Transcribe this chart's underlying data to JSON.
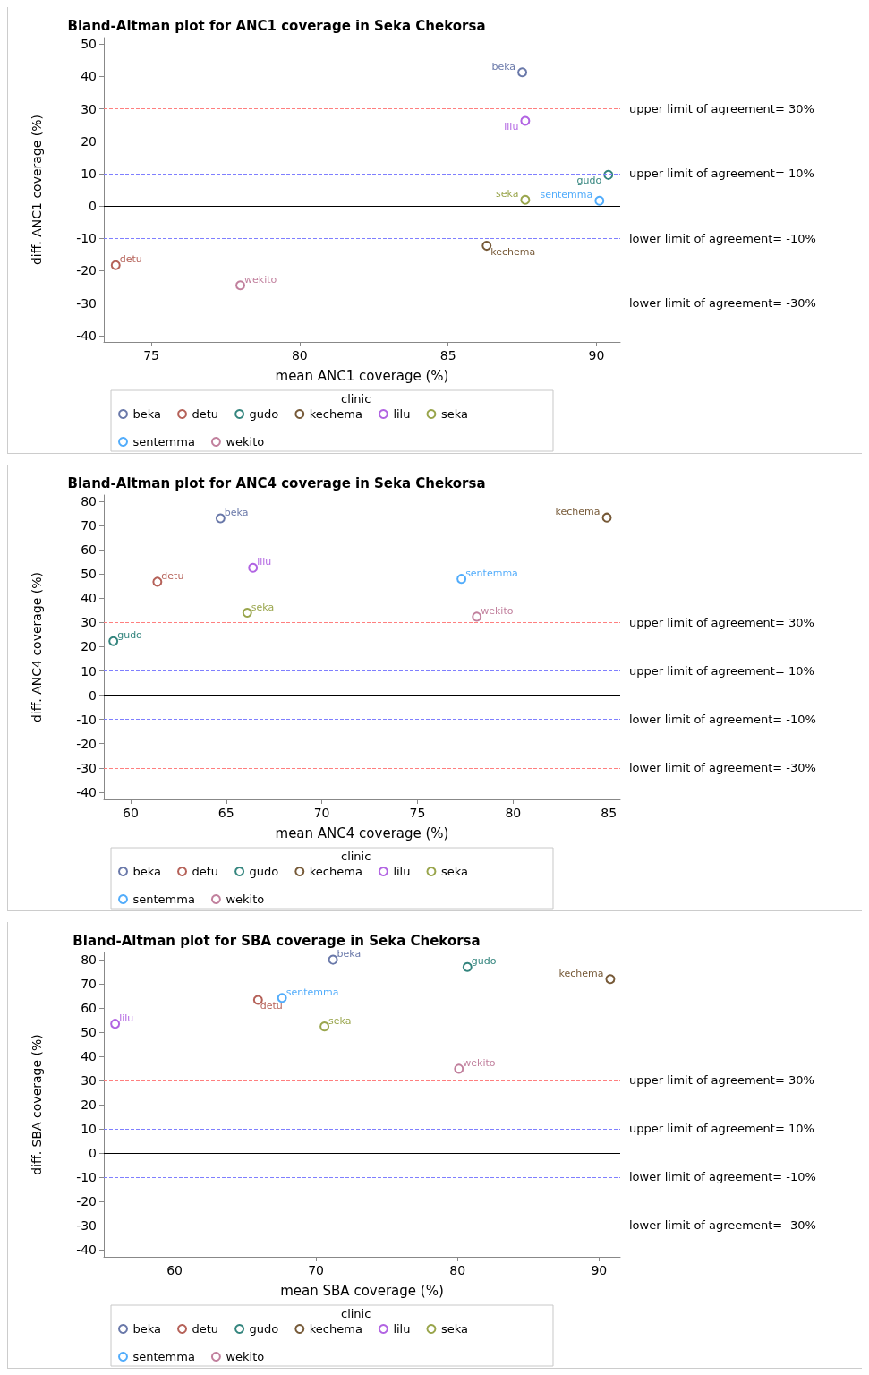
{
  "chart_data": [
    {
      "type": "scatter",
      "title": "Bland-Altman plot for ANC1 coverage in Seka Chekorsa",
      "xlabel": "mean ANC1 coverage (%)",
      "ylabel": "diff. ANC1 coverage (%)",
      "legend_title": "clinic",
      "legend": "bottom",
      "grid": false,
      "marker": "circle",
      "xlim": [
        73.4,
        90.8
      ],
      "xticks": [
        75,
        80,
        85,
        90
      ],
      "ylim": [
        -42,
        52
      ],
      "yticks": [
        -40,
        -30,
        -20,
        -10,
        0,
        10,
        20,
        30,
        40,
        50
      ],
      "series": [
        {
          "name": "beka",
          "color": "#445694",
          "x": [
            87.5
          ],
          "values": [
            41.3
          ]
        },
        {
          "name": "detu",
          "color": "#a23a2e",
          "x": [
            73.8
          ],
          "values": [
            -18.3
          ]
        },
        {
          "name": "gudo",
          "color": "#01665e",
          "x": [
            90.4
          ],
          "values": [
            9.6
          ]
        },
        {
          "name": "kechema",
          "color": "#543005",
          "x": [
            86.3
          ],
          "values": [
            -12.3
          ]
        },
        {
          "name": "lilu",
          "color": "#9d3cdb",
          "x": [
            87.6
          ],
          "values": [
            26.3
          ]
        },
        {
          "name": "seka",
          "color": "#7f8e1f",
          "x": [
            87.6
          ],
          "values": [
            1.9
          ]
        },
        {
          "name": "sentemma",
          "color": "#2597fa",
          "x": [
            90.1
          ],
          "values": [
            1.6
          ]
        },
        {
          "name": "wekito",
          "color": "#b26084",
          "x": [
            78.0
          ],
          "values": [
            -24.5
          ]
        }
      ],
      "ref_lines": [
        {
          "axis": "y",
          "value": 30,
          "label": "upper limit of agreement= 30%",
          "color": "#ff7f7f",
          "line_style": "dashed"
        },
        {
          "axis": "y",
          "value": 10,
          "label": "upper limit of agreement= 10%",
          "color": "#7f7fff",
          "line_style": "dashed"
        },
        {
          "axis": "y",
          "value": 0,
          "label": null,
          "color": "#000000",
          "line_style": "solid"
        },
        {
          "axis": "y",
          "value": -10,
          "label": "lower limit of agreement= -10%",
          "color": "#7f7fff",
          "line_style": "dashed"
        },
        {
          "axis": "y",
          "value": -30,
          "label": "lower limit of agreement= -30%",
          "color": "#ff7f7f",
          "line_style": "dashed"
        }
      ]
    },
    {
      "type": "scatter",
      "title": "Bland-Altman plot for ANC4 coverage in Seka Chekorsa",
      "xlabel": "mean ANC4 coverage (%)",
      "ylabel": "diff. ANC4 coverage (%)",
      "legend_title": "clinic",
      "legend": "bottom",
      "grid": false,
      "marker": "circle",
      "xlim": [
        58.6,
        85.6
      ],
      "xticks": [
        60,
        65,
        70,
        75,
        80,
        85
      ],
      "ylim": [
        -43,
        82.6
      ],
      "yticks": [
        -40,
        -30,
        -20,
        -10,
        0,
        10,
        20,
        30,
        40,
        50,
        60,
        70,
        80
      ],
      "series": [
        {
          "name": "beka",
          "color": "#445694",
          "x": [
            64.7
          ],
          "values": [
            73.0
          ]
        },
        {
          "name": "detu",
          "color": "#a23a2e",
          "x": [
            61.4
          ],
          "values": [
            46.8
          ]
        },
        {
          "name": "gudo",
          "color": "#01665e",
          "x": [
            59.1
          ],
          "values": [
            22.3
          ]
        },
        {
          "name": "kechema",
          "color": "#543005",
          "x": [
            84.9
          ],
          "values": [
            73.3
          ]
        },
        {
          "name": "lilu",
          "color": "#9d3cdb",
          "x": [
            66.4
          ],
          "values": [
            52.6
          ]
        },
        {
          "name": "seka",
          "color": "#7f8e1f",
          "x": [
            66.1
          ],
          "values": [
            34.0
          ]
        },
        {
          "name": "sentemma",
          "color": "#2597fa",
          "x": [
            77.3
          ],
          "values": [
            48.0
          ]
        },
        {
          "name": "wekito",
          "color": "#b26084",
          "x": [
            78.1
          ],
          "values": [
            32.4
          ]
        }
      ],
      "ref_lines": [
        {
          "axis": "y",
          "value": 30,
          "label": "upper limit of agreement= 30%",
          "color": "#ff7f7f",
          "line_style": "dashed"
        },
        {
          "axis": "y",
          "value": 10,
          "label": "upper limit of agreement= 10%",
          "color": "#7f7fff",
          "line_style": "dashed"
        },
        {
          "axis": "y",
          "value": 0,
          "label": null,
          "color": "#000000",
          "line_style": "solid"
        },
        {
          "axis": "y",
          "value": -10,
          "label": "lower limit of agreement= -10%",
          "color": "#7f7fff",
          "line_style": "dashed"
        },
        {
          "axis": "y",
          "value": -30,
          "label": "lower limit of agreement= -30%",
          "color": "#ff7f7f",
          "line_style": "dashed"
        }
      ]
    },
    {
      "type": "scatter",
      "title": "Bland-Altman plot for SBA coverage in Seka Chekorsa",
      "xlabel": "mean SBA coverage (%)",
      "ylabel": "diff. SBA coverage (%)",
      "legend_title": "clinic",
      "legend": "bottom",
      "grid": false,
      "marker": "circle",
      "xlim": [
        55.0,
        91.5
      ],
      "xticks": [
        60,
        70,
        80,
        90
      ],
      "ylim": [
        -43,
        82.9
      ],
      "yticks": [
        -40,
        -30,
        -20,
        -10,
        0,
        10,
        20,
        30,
        40,
        50,
        60,
        70,
        80
      ],
      "series": [
        {
          "name": "beka",
          "color": "#445694",
          "x": [
            71.2
          ],
          "values": [
            79.9
          ]
        },
        {
          "name": "detu",
          "color": "#a23a2e",
          "x": [
            65.9
          ],
          "values": [
            63.3
          ]
        },
        {
          "name": "gudo",
          "color": "#01665e",
          "x": [
            80.7
          ],
          "values": [
            76.9
          ]
        },
        {
          "name": "kechema",
          "color": "#543005",
          "x": [
            90.8
          ],
          "values": [
            71.9
          ]
        },
        {
          "name": "lilu",
          "color": "#9d3cdb",
          "x": [
            55.8
          ],
          "values": [
            53.4
          ]
        },
        {
          "name": "seka",
          "color": "#7f8e1f",
          "x": [
            70.6
          ],
          "values": [
            52.3
          ]
        },
        {
          "name": "sentemma",
          "color": "#2597fa",
          "x": [
            67.6
          ],
          "values": [
            64.1
          ]
        },
        {
          "name": "wekito",
          "color": "#b26084",
          "x": [
            80.1
          ],
          "values": [
            34.8
          ]
        }
      ],
      "ref_lines": [
        {
          "axis": "y",
          "value": 30,
          "label": "upper limit of agreement= 30%",
          "color": "#ff7f7f",
          "line_style": "dashed"
        },
        {
          "axis": "y",
          "value": 10,
          "label": "upper limit of agreement= 10%",
          "color": "#7f7fff",
          "line_style": "dashed"
        },
        {
          "axis": "y",
          "value": 0,
          "label": null,
          "color": "#000000",
          "line_style": "solid"
        },
        {
          "axis": "y",
          "value": -10,
          "label": "lower limit of agreement= -10%",
          "color": "#7f7fff",
          "line_style": "dashed"
        },
        {
          "axis": "y",
          "value": -30,
          "label": "lower limit of agreement= -30%",
          "color": "#ff7f7f",
          "line_style": "dashed"
        }
      ]
    }
  ]
}
